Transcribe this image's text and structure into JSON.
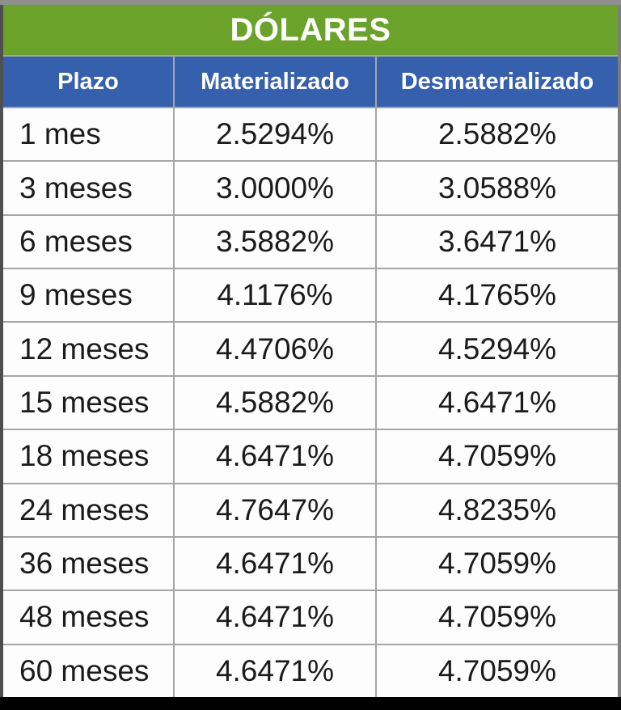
{
  "title": "DÓLARES",
  "colors": {
    "title_bg": "#6ba32a",
    "header_bg": "#3560ae",
    "header_text": "#ffffff",
    "body_text": "#1b1b1b",
    "grid_line": "#a6a6a6",
    "top_strip": "#8f8f8f",
    "bottom_bar": "#000000"
  },
  "table": {
    "columns": [
      "Plazo",
      "Materializado",
      "Desmaterializado"
    ],
    "rows": [
      [
        "1 mes",
        "2.5294%",
        "2.5882%"
      ],
      [
        "3 meses",
        "3.0000%",
        "3.0588%"
      ],
      [
        "6 meses",
        "3.5882%",
        "3.6471%"
      ],
      [
        "9 meses",
        "4.1176%",
        "4.1765%"
      ],
      [
        "12 meses",
        "4.4706%",
        "4.5294%"
      ],
      [
        "15 meses",
        "4.5882%",
        "4.6471%"
      ],
      [
        "18 meses",
        "4.6471%",
        "4.7059%"
      ],
      [
        "24 meses",
        "4.7647%",
        "4.8235%"
      ],
      [
        "36 meses",
        "4.6471%",
        "4.7059%"
      ],
      [
        "48 meses",
        "4.6471%",
        "4.7059%"
      ],
      [
        "60 meses",
        "4.6471%",
        "4.7059%"
      ]
    ]
  },
  "chart_data": {
    "type": "table",
    "title": "DÓLARES",
    "categories": [
      "1 mes",
      "3 meses",
      "6 meses",
      "9 meses",
      "12 meses",
      "15 meses",
      "18 meses",
      "24 meses",
      "36 meses",
      "48 meses",
      "60 meses"
    ],
    "series": [
      {
        "name": "Materializado",
        "values": [
          2.5294,
          3.0,
          3.5882,
          4.1176,
          4.4706,
          4.5882,
          4.6471,
          4.7647,
          4.6471,
          4.6471,
          4.6471
        ]
      },
      {
        "name": "Desmaterializado",
        "values": [
          2.5882,
          3.0588,
          3.6471,
          4.1765,
          4.5294,
          4.6471,
          4.7059,
          4.8235,
          4.7059,
          4.7059,
          4.7059
        ]
      }
    ],
    "unit": "%"
  }
}
